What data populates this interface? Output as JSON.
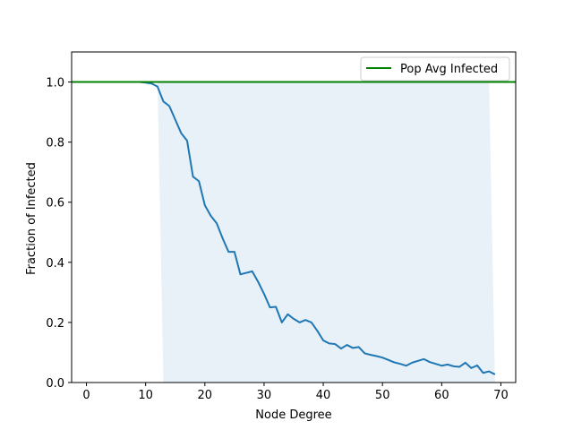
{
  "chart_data": {
    "type": "line",
    "title": "",
    "xlabel": "Node Degree",
    "ylabel": "Fraction of Infected",
    "xlim": [
      -2.5,
      72.5
    ],
    "ylim": [
      0.0,
      1.1
    ],
    "xticks": [
      0,
      10,
      20,
      30,
      40,
      50,
      60,
      70
    ],
    "yticks": [
      0.0,
      0.2,
      0.4,
      0.6,
      0.8,
      1.0
    ],
    "grid": false,
    "legend_position": "top-right",
    "series": [
      {
        "color": "#1f77b4",
        "x": [
          1,
          2,
          3,
          4,
          5,
          6,
          7,
          8,
          9,
          10,
          11,
          12,
          13,
          14,
          15,
          16,
          17,
          18,
          19,
          20,
          21,
          22,
          23,
          24,
          25,
          26,
          27,
          28,
          29,
          30,
          31,
          32,
          33,
          34,
          35,
          36,
          37,
          38,
          39,
          40,
          41,
          42,
          43,
          44,
          45,
          46,
          47,
          48,
          49,
          50,
          51,
          52,
          53,
          54,
          55,
          56,
          57,
          58,
          59,
          60,
          61,
          62,
          63,
          64,
          65,
          66,
          67,
          68,
          69
        ],
        "y": [
          1.0,
          1.0,
          1.0,
          1.0,
          1.0,
          1.0,
          1.0,
          1.0,
          1.0,
          0.998,
          0.995,
          0.985,
          0.935,
          0.92,
          0.875,
          0.83,
          0.805,
          0.685,
          0.67,
          0.59,
          0.555,
          0.53,
          0.48,
          0.435,
          0.435,
          0.36,
          0.365,
          0.37,
          0.335,
          0.295,
          0.25,
          0.252,
          0.2,
          0.227,
          0.212,
          0.2,
          0.208,
          0.2,
          0.172,
          0.14,
          0.13,
          0.128,
          0.113,
          0.125,
          0.115,
          0.118,
          0.097,
          0.092,
          0.088,
          0.083,
          0.075,
          0.067,
          0.062,
          0.056,
          0.066,
          0.072,
          0.078,
          0.068,
          0.062,
          0.056,
          0.06,
          0.054,
          0.052,
          0.066,
          0.048,
          0.057,
          0.032,
          0.037,
          0.027
        ]
      },
      {
        "name": "Pop Avg Infected",
        "color": "#008000",
        "hline": 1.0
      }
    ],
    "band": {
      "color": "#1f77b4",
      "opacity": 0.1,
      "x": [
        1,
        12,
        13,
        68,
        69
      ],
      "upper": [
        1.0,
        1.0,
        1.0,
        1.0,
        0.0
      ],
      "lower": [
        1.0,
        1.0,
        0.0,
        0.0,
        0.0
      ]
    }
  }
}
